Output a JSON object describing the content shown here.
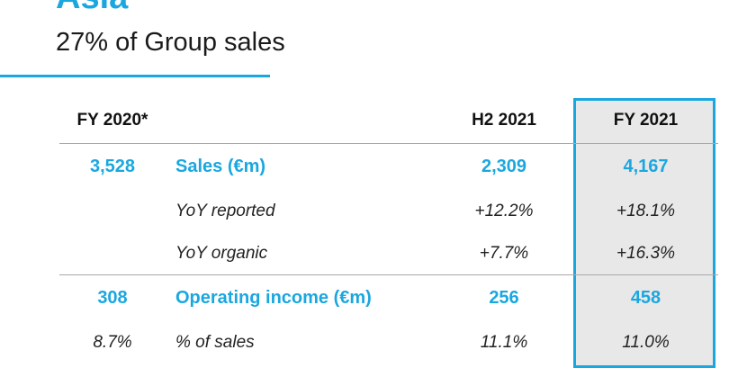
{
  "header": {
    "region_title": "Asia",
    "subtitle": "27% of Group sales"
  },
  "table": {
    "columns": {
      "prev_year": "FY 2020*",
      "h2": "H2 2021",
      "fy": "FY 2021"
    },
    "rows": [
      {
        "prev": "3,528",
        "label": "Sales (€m)",
        "h2": "2,309",
        "fy": "4,167"
      },
      {
        "prev": "",
        "label": "YoY reported",
        "h2": "+12.2%",
        "fy": "+18.1%"
      },
      {
        "prev": "",
        "label": "YoY organic",
        "h2": "+7.7%",
        "fy": "+16.3%"
      },
      {
        "prev": "308",
        "label": "Operating income (€m)",
        "h2": "256",
        "fy": "458"
      },
      {
        "prev": "8.7%",
        "label": "% of sales",
        "h2": "11.1%",
        "fy": "11.0%"
      }
    ]
  },
  "colors": {
    "accent": "#1aa7e0",
    "highlight_bg": "#e8e8e8"
  }
}
